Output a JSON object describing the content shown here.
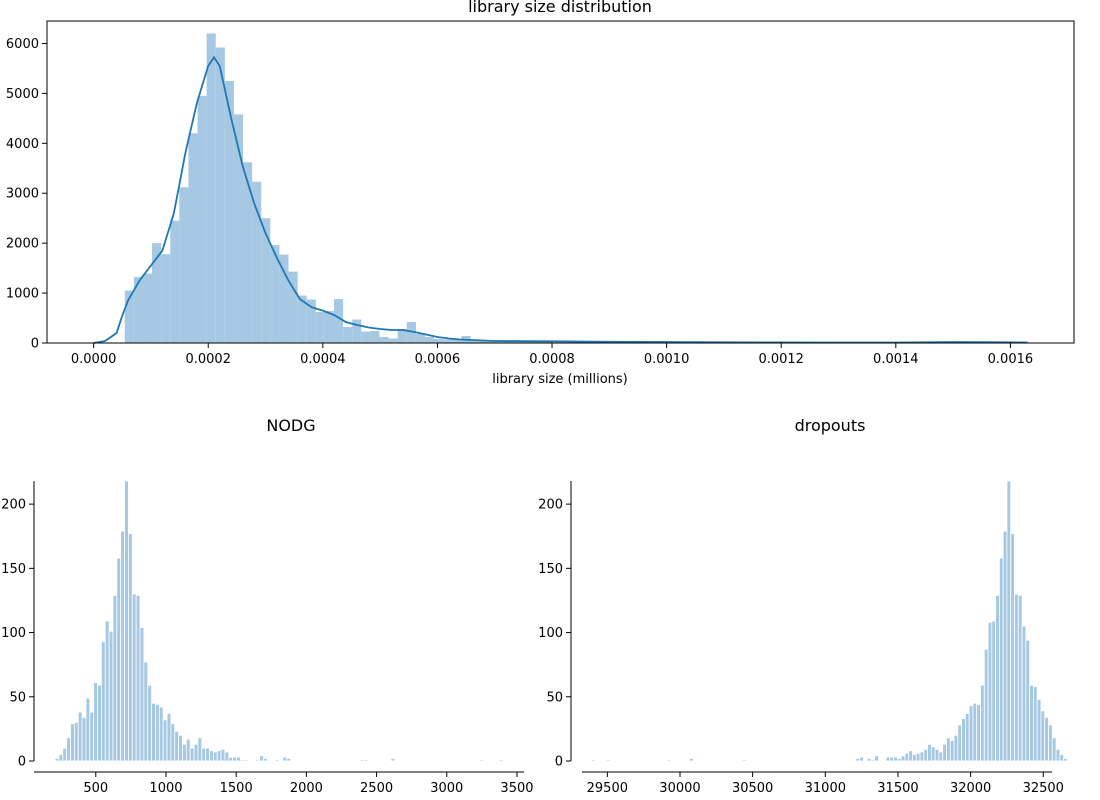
{
  "chart_data": [
    {
      "type": "histogram",
      "title": "library size distribution",
      "xlabel": "library size (millions)",
      "ylabel": "",
      "xlim": [
        -8.14e-05,
        0.001711
      ],
      "ylim": [
        0,
        6450
      ],
      "x_ticks": [
        0.0,
        0.0002,
        0.0004,
        0.0006,
        0.0008,
        0.001,
        0.0012,
        0.0014,
        0.0016
      ],
      "x_tick_labels": [
        "0.0000",
        "0.0002",
        "0.0004",
        "0.0006",
        "0.0008",
        "0.0010",
        "0.0012",
        "0.0014",
        "0.0016"
      ],
      "y_ticks": [
        0,
        1000,
        2000,
        3000,
        4000,
        5000,
        6000
      ],
      "y_tick_labels": [
        "0",
        "1000",
        "2000",
        "3000",
        "4000",
        "5000",
        "6000"
      ],
      "bar_color": "#a6c8e2",
      "line_color": "#1f77b4",
      "frame": "box",
      "bins": {
        "start": 5.43e-05,
        "width": 1.588e-05,
        "counts": [
          1050,
          1320,
          1390,
          2000,
          1780,
          2450,
          3120,
          4200,
          4950,
          6200,
          5920,
          5250,
          4580,
          3620,
          3230,
          2500,
          1960,
          1770,
          1430,
          950,
          870,
          620,
          640,
          880,
          320,
          470,
          230,
          240,
          120,
          90,
          280,
          420,
          180,
          120,
          80,
          70,
          70,
          140,
          70,
          50,
          40,
          30,
          30,
          20,
          20,
          20,
          20,
          10,
          10,
          10,
          10,
          10,
          10,
          10,
          10,
          10,
          10,
          10,
          10,
          10,
          10,
          10,
          10,
          10,
          10,
          10,
          10,
          10,
          10,
          10,
          10,
          10,
          10,
          10,
          10,
          10,
          10,
          10,
          10,
          10,
          10,
          10,
          10,
          10,
          10,
          10,
          10,
          10,
          10,
          10,
          10,
          10,
          10,
          10,
          10,
          10,
          10,
          10,
          10,
          10
        ]
      },
      "kde": {
        "x": [
          0.0,
          2e-05,
          4e-05,
          5e-05,
          6e-05,
          8e-05,
          0.0001,
          0.00012,
          0.00014,
          0.00016,
          0.00018,
          0.0002,
          0.00021,
          0.00022,
          0.00024,
          0.00026,
          0.00028,
          0.0003,
          0.00032,
          0.00034,
          0.00036,
          0.00038,
          0.0004,
          0.00042,
          0.00044,
          0.00046,
          0.00048,
          0.0005,
          0.00052,
          0.00054,
          0.00056,
          0.00058,
          0.0006,
          0.00062,
          0.00064,
          0.00066,
          0.00068,
          0.0007,
          0.0008,
          0.0009,
          0.001,
          0.0011,
          0.0012,
          0.0013,
          0.0014,
          0.0015,
          0.0016,
          0.00163
        ],
        "y": [
          0,
          40,
          200,
          550,
          850,
          1250,
          1550,
          1850,
          2600,
          3800,
          4800,
          5550,
          5720,
          5550,
          4500,
          3550,
          2800,
          2200,
          1700,
          1250,
          880,
          720,
          650,
          560,
          420,
          360,
          310,
          280,
          260,
          260,
          220,
          170,
          120,
          90,
          70,
          60,
          50,
          40,
          35,
          25,
          20,
          15,
          12,
          10,
          10,
          20,
          15,
          10
        ]
      }
    },
    {
      "type": "histogram",
      "title": "NODG",
      "xlabel": "",
      "ylabel": "",
      "xlim": [
        60,
        3550
      ],
      "ylim": [
        0,
        218
      ],
      "x_ticks": [
        500,
        1000,
        1500,
        2000,
        2500,
        3000,
        3500
      ],
      "x_tick_labels": [
        "500",
        "1000",
        "1500",
        "2000",
        "2500",
        "3000",
        "3500"
      ],
      "y_ticks": [
        0,
        50,
        100,
        150,
        200
      ],
      "y_tick_labels": [
        "0",
        "50",
        "100",
        "150",
        "200"
      ],
      "bar_color": "#a6c8e2",
      "frame": "despined",
      "bins": {
        "start": 210,
        "width": 27.5,
        "counts": [
          2,
          5,
          10,
          18,
          29,
          30,
          38,
          34,
          49,
          38,
          61,
          59,
          93,
          109,
          101,
          129,
          158,
          179,
          218,
          177,
          130,
          129,
          104,
          77,
          59,
          45,
          44,
          42,
          32,
          37,
          29,
          23,
          20,
          13,
          17,
          10,
          13,
          18,
          10,
          10,
          8,
          7,
          8,
          9,
          7,
          3,
          3,
          3,
          1,
          1,
          0,
          0,
          1,
          4,
          2,
          0,
          0,
          1,
          0,
          3,
          2,
          0,
          0,
          0,
          0,
          0,
          0,
          0,
          0,
          0,
          0,
          0,
          0,
          0,
          0,
          0,
          0,
          0,
          0,
          1,
          1,
          0,
          0,
          0,
          0,
          0,
          0,
          2,
          0,
          0,
          0,
          0,
          0,
          0,
          0,
          0,
          0,
          0,
          0,
          0,
          0,
          0,
          0,
          0,
          0,
          0,
          0,
          0,
          0,
          0,
          1,
          0,
          0,
          0,
          0,
          1
        ]
      }
    },
    {
      "type": "histogram",
      "title": "dropouts",
      "xlabel": "",
      "ylabel": "",
      "xlim": [
        29250,
        32560
      ],
      "ylim": [
        0,
        218
      ],
      "x_ticks": [
        29500,
        30000,
        30500,
        31000,
        31500,
        32000,
        32500
      ],
      "x_tick_labels": [
        "29500",
        "30000",
        "30500",
        "31000",
        "31500",
        "32000",
        "32500"
      ],
      "y_ticks": [
        0,
        50,
        100,
        150,
        200
      ],
      "y_tick_labels": [
        "0",
        "50",
        "100",
        "150",
        "200"
      ],
      "bar_color": "#a6c8e2",
      "frame": "despined",
      "bins": {
        "start": 29390,
        "width": 26,
        "counts": [
          1,
          0,
          0,
          0,
          1,
          0,
          0,
          0,
          0,
          0,
          0,
          0,
          0,
          0,
          0,
          0,
          0,
          0,
          0,
          0,
          1,
          0,
          0,
          0,
          0,
          0,
          2,
          0,
          0,
          0,
          0,
          0,
          0,
          0,
          0,
          0,
          0,
          0,
          0,
          0,
          1,
          0,
          0,
          0,
          0,
          0,
          0,
          0,
          0,
          0,
          0,
          0,
          0,
          0,
          0,
          0,
          0,
          0,
          0,
          0,
          0,
          0,
          0,
          0,
          0,
          0,
          0,
          0,
          0,
          0,
          2,
          3,
          0,
          2,
          1,
          4,
          0,
          0,
          3,
          3,
          3,
          2,
          4,
          6,
          8,
          5,
          6,
          7,
          9,
          13,
          11,
          9,
          7,
          13,
          18,
          16,
          20,
          28,
          33,
          37,
          43,
          45,
          44,
          59,
          87,
          108,
          109,
          129,
          158,
          179,
          218,
          177,
          130,
          129,
          105,
          94,
          59,
          58,
          48,
          39,
          34,
          28,
          18,
          9,
          5,
          2
        ]
      }
    }
  ]
}
